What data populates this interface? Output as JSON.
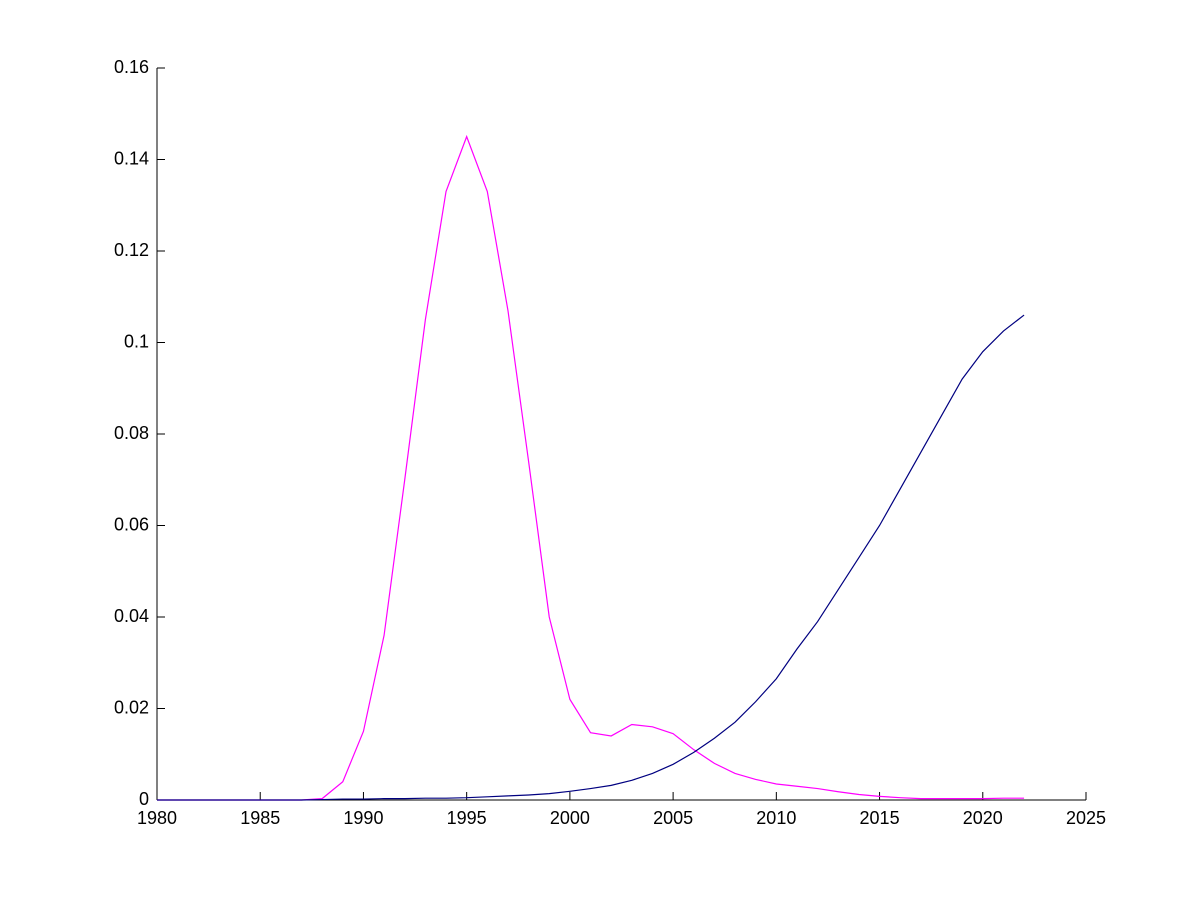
{
  "chart_data": {
    "type": "line",
    "x": [
      1980,
      1981,
      1982,
      1983,
      1984,
      1985,
      1986,
      1987,
      1988,
      1989,
      1990,
      1991,
      1992,
      1993,
      1994,
      1995,
      1996,
      1997,
      1998,
      1999,
      2000,
      2001,
      2002,
      2003,
      2004,
      2005,
      2006,
      2007,
      2008,
      2009,
      2010,
      2011,
      2012,
      2013,
      2014,
      2015,
      2016,
      2017,
      2018,
      2019,
      2020,
      2021,
      2022
    ],
    "series": [
      {
        "color": "#ff00ff",
        "values": [
          0,
          0,
          0,
          0,
          0,
          0,
          0,
          0,
          0.0003,
          0.004,
          0.015,
          0.036,
          0.07,
          0.105,
          0.133,
          0.145,
          0.133,
          0.107,
          0.074,
          0.04,
          0.022,
          0.0147,
          0.014,
          0.0165,
          0.016,
          0.0145,
          0.011,
          0.008,
          0.0058,
          0.0045,
          0.0035,
          0.003,
          0.0025,
          0.0018,
          0.0012,
          0.0008,
          0.0005,
          0.0003,
          0.0003,
          0.0003,
          0.0003,
          0.0004,
          0.0004
        ]
      },
      {
        "color": "#000080",
        "values": [
          0,
          0,
          0,
          0,
          0,
          0,
          0,
          0,
          0.0001,
          0.0002,
          0.0002,
          0.0003,
          0.0003,
          0.0004,
          0.0004,
          0.0005,
          0.0007,
          0.0009,
          0.0011,
          0.0014,
          0.0019,
          0.0025,
          0.0032,
          0.0043,
          0.0058,
          0.0078,
          0.0104,
          0.0135,
          0.017,
          0.0215,
          0.0265,
          0.033,
          0.039,
          0.046,
          0.053,
          0.06,
          0.068,
          0.076,
          0.084,
          0.092,
          0.098,
          0.1025,
          0.106
        ]
      }
    ],
    "xlim": [
      1980,
      2025
    ],
    "xticks": [
      1980,
      1985,
      1990,
      1995,
      2000,
      2005,
      2010,
      2015,
      2020,
      2025
    ],
    "ylim": [
      0,
      0.16
    ],
    "yticks": [
      0,
      0.02,
      0.04,
      0.06,
      0.08,
      0.1,
      0.12,
      0.14,
      0.16
    ]
  }
}
